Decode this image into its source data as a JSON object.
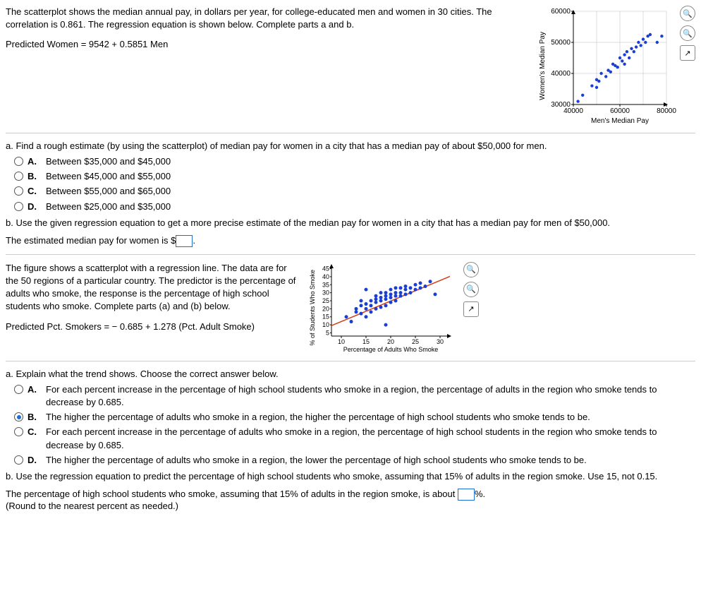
{
  "q1": {
    "intro": "The scatterplot shows the median annual pay, in dollars per year, for college-educated men and women in 30 cities. The correlation is 0.861. The regression equation is shown below. Complete parts a and b.",
    "equation": "Predicted Women = 9542 + 0.5851 Men",
    "partA_prompt": "a. Find a rough estimate (by using the scatterplot) of median pay for women in a city that has a median pay of about $50,000 for men.",
    "options": [
      {
        "letter": "A.",
        "text": "Between $35,000 and $45,000"
      },
      {
        "letter": "B.",
        "text": "Between $45,000 and $55,000"
      },
      {
        "letter": "C.",
        "text": "Between $55,000 and $65,000"
      },
      {
        "letter": "D.",
        "text": "Between $25,000 and $35,000"
      }
    ],
    "partB_prompt": "b. Use the given regression equation to get a more precise estimate of the median pay for women in a city that has a median pay for men of $50,000.",
    "partB_answer_pre": "The estimated median pay for women is $",
    "partB_answer_post": ".",
    "chart": {
      "ylabel": "Women's Median Pay",
      "xlabel": "Men's Median Pay",
      "yticks": [
        30000,
        40000,
        50000,
        60000
      ],
      "xticks": [
        40000,
        60000,
        80000
      ],
      "xlim": [
        40000,
        80000
      ],
      "ylim": [
        30000,
        60000
      ],
      "axis_fontsize": 10,
      "point_color": "#1a3fd1",
      "point_r": 2.2,
      "grid_color": "#bbb",
      "bg": "#ffffff",
      "points": [
        [
          42000,
          31000
        ],
        [
          44000,
          33000
        ],
        [
          48000,
          36000
        ],
        [
          50000,
          35500
        ],
        [
          50000,
          38000
        ],
        [
          51000,
          37500
        ],
        [
          52000,
          40000
        ],
        [
          54000,
          39000
        ],
        [
          55000,
          41000
        ],
        [
          56000,
          40500
        ],
        [
          57000,
          43000
        ],
        [
          58000,
          42500
        ],
        [
          59000,
          42000
        ],
        [
          60000,
          45000
        ],
        [
          61000,
          44000
        ],
        [
          62000,
          46000
        ],
        [
          62000,
          43000
        ],
        [
          63000,
          47000
        ],
        [
          64000,
          45000
        ],
        [
          65000,
          48000
        ],
        [
          66000,
          47000
        ],
        [
          67000,
          48500
        ],
        [
          68000,
          50000
        ],
        [
          69000,
          49000
        ],
        [
          70000,
          51000
        ],
        [
          71000,
          50000
        ],
        [
          72000,
          52000
        ],
        [
          73000,
          52500
        ],
        [
          76000,
          50000
        ],
        [
          78000,
          52000
        ]
      ]
    }
  },
  "q2": {
    "intro": "The figure shows a scatterplot with a regression line. The data are for the 50 regions of a particular country. The predictor is the percentage of adults who smoke, the response is the percentage of high school students who smoke. Complete parts (a) and (b) below.",
    "equation": "Predicted Pct. Smokers = − 0.685 + 1.278 (Pct. Adult Smoke)",
    "partA_prompt": "a. Explain what the trend shows. Choose the correct answer below.",
    "options": [
      {
        "letter": "A.",
        "text": "For each percent increase in the percentage of high school students who smoke in a region, the percentage of adults in the region who smoke tends to decrease by 0.685.",
        "selected": false
      },
      {
        "letter": "B.",
        "text": "The higher the percentage of adults who smoke in a region, the higher the percentage of high school students who smoke tends to be.",
        "selected": true
      },
      {
        "letter": "C.",
        "text": "For each percent increase in the percentage of adults who smoke in a region, the percentage of high school students in the region who smoke tends to decrease by 0.685.",
        "selected": false
      },
      {
        "letter": "D.",
        "text": "The higher the percentage of adults who smoke in a region, the lower the percentage of high school students who smoke tends to be.",
        "selected": false
      }
    ],
    "partB_prompt": "b. Use the regression equation to predict the percentage of high school students who smoke, assuming that 15% of adults in the region smoke. Use 15, not 0.15.",
    "partB_answer_pre": "The percentage of high school students who smoke, assuming that 15% of adults in the region smoke, is about ",
    "partB_answer_post": "%.",
    "partB_round": "(Round to the nearest percent as needed.)",
    "chart": {
      "ylabel": "% of Students Who Smoke",
      "xlabel": "Percentage of Adults Who Smoke",
      "yticks": [
        5,
        10,
        15,
        20,
        25,
        30,
        35,
        40,
        45
      ],
      "xticks": [
        10,
        15,
        20,
        25,
        30
      ],
      "xlim": [
        8,
        32
      ],
      "ylim": [
        3,
        47
      ],
      "axis_fontsize": 9,
      "point_color": "#1a3fd1",
      "line_color": "#d13f1a",
      "point_r": 2.5,
      "bg": "#ffffff",
      "line": {
        "x1": 8,
        "y1": 9.5,
        "x2": 32,
        "y2": 40.2
      },
      "points": [
        [
          11,
          15
        ],
        [
          12,
          12
        ],
        [
          13,
          18
        ],
        [
          13,
          20
        ],
        [
          14,
          17
        ],
        [
          14,
          22
        ],
        [
          14,
          25
        ],
        [
          15,
          15
        ],
        [
          15,
          20
        ],
        [
          15,
          23
        ],
        [
          16,
          18
        ],
        [
          16,
          22
        ],
        [
          16,
          25
        ],
        [
          17,
          20
        ],
        [
          17,
          24
        ],
        [
          17,
          26
        ],
        [
          17,
          28
        ],
        [
          18,
          21
        ],
        [
          18,
          25
        ],
        [
          18,
          27
        ],
        [
          18,
          30
        ],
        [
          19,
          22
        ],
        [
          19,
          26
        ],
        [
          19,
          28
        ],
        [
          19,
          30
        ],
        [
          20,
          24
        ],
        [
          20,
          27
        ],
        [
          20,
          29
        ],
        [
          20,
          32
        ],
        [
          21,
          25
        ],
        [
          21,
          28
        ],
        [
          21,
          30
        ],
        [
          21,
          33
        ],
        [
          22,
          28
        ],
        [
          22,
          30
        ],
        [
          22,
          33
        ],
        [
          23,
          29
        ],
        [
          23,
          32
        ],
        [
          23,
          34
        ],
        [
          24,
          30
        ],
        [
          24,
          33
        ],
        [
          25,
          32
        ],
        [
          25,
          35
        ],
        [
          26,
          33
        ],
        [
          26,
          36
        ],
        [
          27,
          34
        ],
        [
          28,
          37
        ],
        [
          29,
          29
        ],
        [
          19,
          10
        ],
        [
          15,
          32
        ]
      ]
    }
  }
}
